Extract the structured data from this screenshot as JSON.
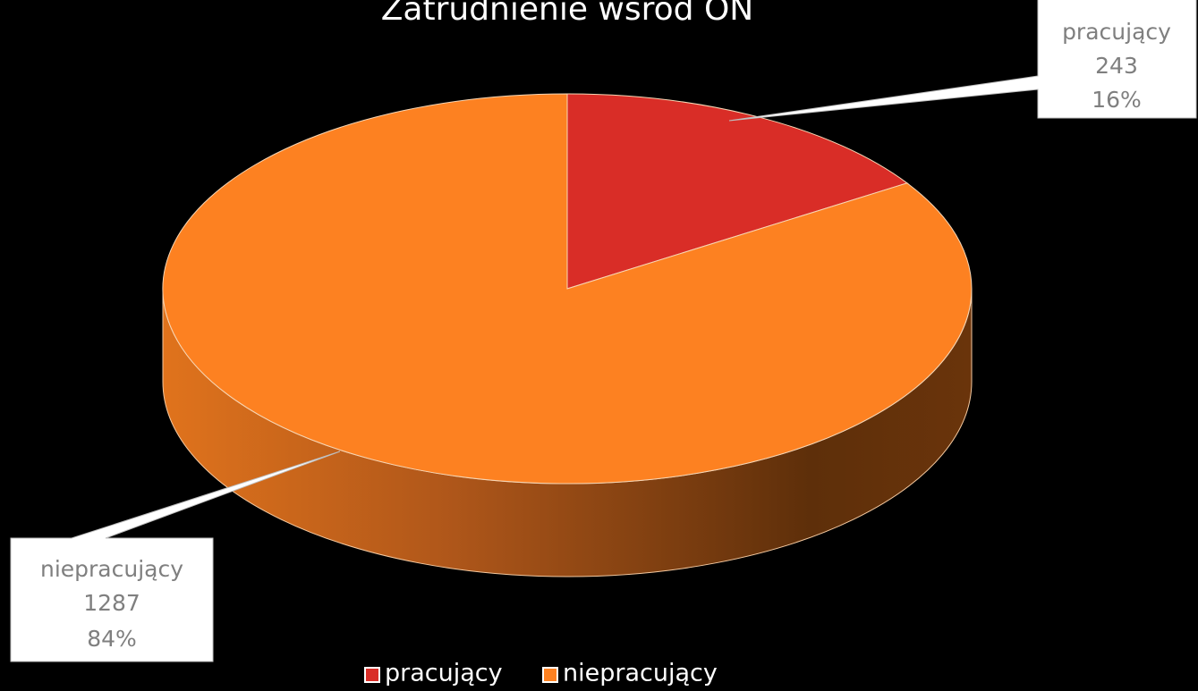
{
  "chart_data": {
    "type": "pie",
    "title": "Zatrudnienie wśród ON",
    "categories": [
      "pracujący",
      "niepracujący"
    ],
    "values": [
      243,
      1287
    ],
    "percent_labels": [
      "16%",
      "84%"
    ],
    "colors": [
      "#d92d27",
      "#fd8121"
    ],
    "legend": "bottom"
  }
}
